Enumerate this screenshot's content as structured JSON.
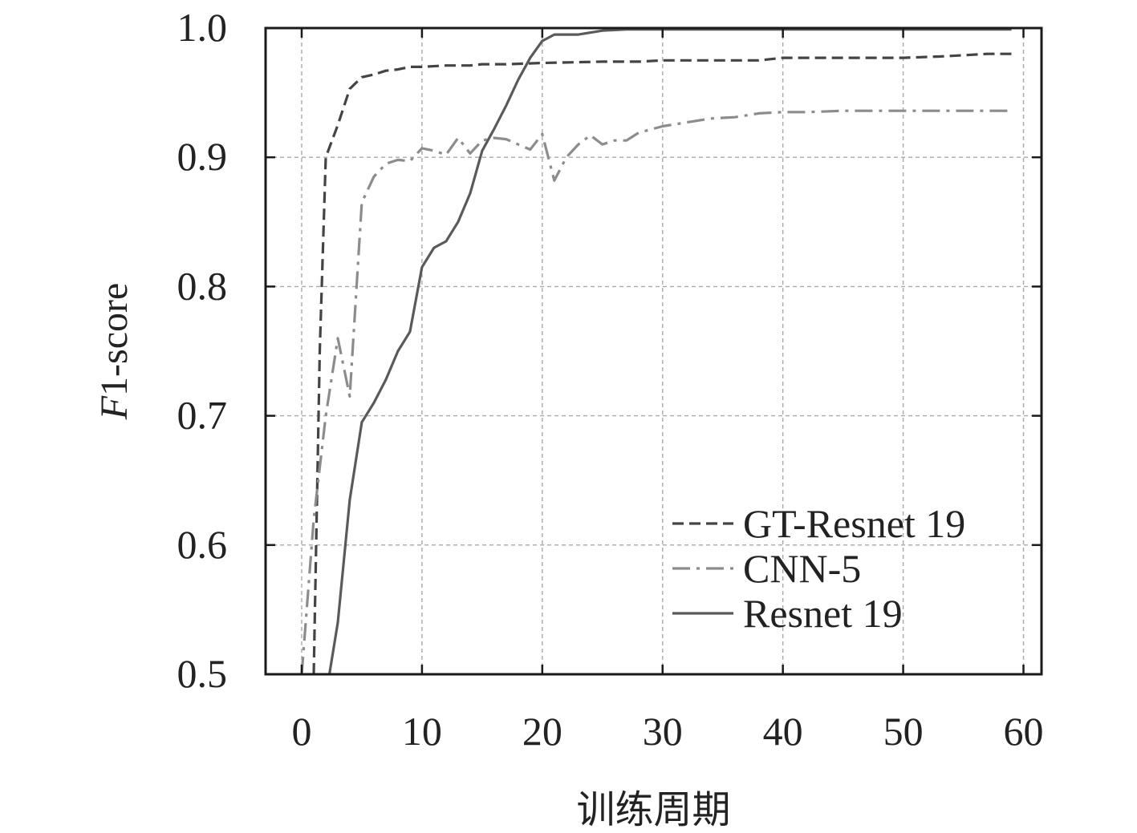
{
  "chart_data": {
    "type": "line",
    "title": "",
    "xlabel": "训练周期",
    "ylabel_prefix": "F",
    "ylabel_suffix": "1-score",
    "xlim": [
      -3,
      61.5
    ],
    "ylim": [
      0.5,
      1.0
    ],
    "x_ticks": [
      0,
      10,
      20,
      30,
      40,
      50,
      60
    ],
    "y_ticks": [
      0.5,
      0.6,
      0.7,
      0.8,
      0.9,
      1.0
    ],
    "x_tick_labels": [
      "0",
      "10",
      "20",
      "30",
      "40",
      "50",
      "60"
    ],
    "y_tick_labels": [
      "0.5",
      "0.6",
      "0.7",
      "0.8",
      "0.9",
      "1.0"
    ],
    "grid": true,
    "legend_position": "bottom-right",
    "series": [
      {
        "name": "GT-Resnet 19",
        "style": "dashed",
        "color": "#444444",
        "points": [
          [
            1,
            0.5
          ],
          [
            1.5,
            0.75
          ],
          [
            2,
            0.9
          ],
          [
            3,
            0.925
          ],
          [
            4,
            0.953
          ],
          [
            5,
            0.962
          ],
          [
            6,
            0.964
          ],
          [
            7,
            0.967
          ],
          [
            8,
            0.968
          ],
          [
            9,
            0.97
          ],
          [
            10,
            0.97
          ],
          [
            12,
            0.971
          ],
          [
            14,
            0.971
          ],
          [
            15,
            0.972
          ],
          [
            17,
            0.972
          ],
          [
            20,
            0.973
          ],
          [
            25,
            0.974
          ],
          [
            28,
            0.974
          ],
          [
            30,
            0.975
          ],
          [
            35,
            0.975
          ],
          [
            38,
            0.975
          ],
          [
            40,
            0.977
          ],
          [
            45,
            0.977
          ],
          [
            48,
            0.977
          ],
          [
            50,
            0.977
          ],
          [
            53,
            0.978
          ],
          [
            55,
            0.979
          ],
          [
            57,
            0.98
          ],
          [
            59,
            0.98
          ]
        ]
      },
      {
        "name": "CNN-5",
        "style": "dashdot",
        "color": "#8c8c8c",
        "points": [
          [
            0,
            0.5
          ],
          [
            0.5,
            0.56
          ],
          [
            1,
            0.62
          ],
          [
            2,
            0.7
          ],
          [
            3,
            0.76
          ],
          [
            4,
            0.715
          ],
          [
            5,
            0.865
          ],
          [
            6,
            0.885
          ],
          [
            7,
            0.895
          ],
          [
            8,
            0.898
          ],
          [
            9,
            0.897
          ],
          [
            10,
            0.907
          ],
          [
            11,
            0.905
          ],
          [
            12,
            0.902
          ],
          [
            13,
            0.915
          ],
          [
            14,
            0.903
          ],
          [
            15,
            0.913
          ],
          [
            16,
            0.915
          ],
          [
            17,
            0.914
          ],
          [
            18,
            0.91
          ],
          [
            19,
            0.906
          ],
          [
            20,
            0.918
          ],
          [
            21,
            0.882
          ],
          [
            22,
            0.9
          ],
          [
            23,
            0.91
          ],
          [
            24,
            0.917
          ],
          [
            25,
            0.91
          ],
          [
            26,
            0.913
          ],
          [
            27,
            0.913
          ],
          [
            28,
            0.919
          ],
          [
            30,
            0.924
          ],
          [
            32,
            0.927
          ],
          [
            34,
            0.93
          ],
          [
            36,
            0.931
          ],
          [
            38,
            0.934
          ],
          [
            40,
            0.935
          ],
          [
            42,
            0.935
          ],
          [
            45,
            0.936
          ],
          [
            50,
            0.936
          ],
          [
            55,
            0.936
          ],
          [
            59,
            0.936
          ]
        ]
      },
      {
        "name": "Resnet 19",
        "style": "solid",
        "color": "#5a5a5a",
        "points": [
          [
            2.3,
            0.5
          ],
          [
            3,
            0.54
          ],
          [
            4,
            0.635
          ],
          [
            5,
            0.695
          ],
          [
            6,
            0.71
          ],
          [
            7,
            0.728
          ],
          [
            8,
            0.75
          ],
          [
            9,
            0.765
          ],
          [
            10,
            0.815
          ],
          [
            11,
            0.83
          ],
          [
            12,
            0.835
          ],
          [
            13,
            0.85
          ],
          [
            14,
            0.872
          ],
          [
            15,
            0.905
          ],
          [
            16,
            0.922
          ],
          [
            17,
            0.94
          ],
          [
            18,
            0.96
          ],
          [
            19,
            0.977
          ],
          [
            20,
            0.99
          ],
          [
            21,
            0.995
          ],
          [
            23,
            0.995
          ],
          [
            25,
            0.998
          ],
          [
            27,
            0.999
          ],
          [
            30,
            0.999
          ],
          [
            35,
            0.999
          ],
          [
            40,
            0.999
          ],
          [
            45,
            0.999
          ],
          [
            50,
            0.999
          ],
          [
            55,
            0.999
          ],
          [
            59,
            0.999
          ]
        ]
      }
    ]
  }
}
